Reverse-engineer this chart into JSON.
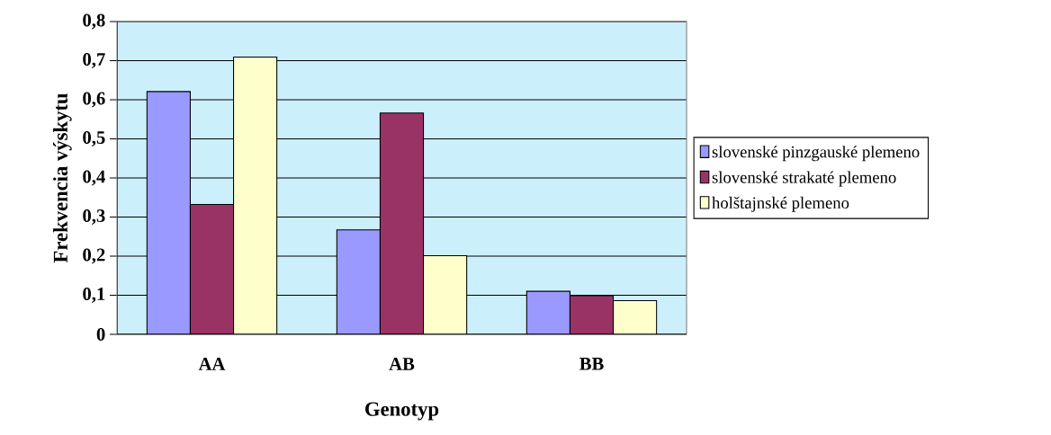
{
  "chart_data": {
    "type": "bar",
    "xlabel": "Genotyp",
    "ylabel": "Frekvencia výskytu",
    "categories": [
      "AA",
      "AB",
      "BB"
    ],
    "series": [
      {
        "name": "slovenské pinzgauské plemeno",
        "color": "#9999ff",
        "values": [
          0.621,
          0.267,
          0.11
        ]
      },
      {
        "name": "slovenské strakaté plemeno",
        "color": "#993366",
        "values": [
          0.332,
          0.566,
          0.099
        ]
      },
      {
        "name": "holštajnské plemeno",
        "color": "#ffffcc",
        "values": [
          0.709,
          0.201,
          0.086
        ]
      }
    ],
    "ylim": [
      0,
      0.8
    ],
    "yticks": [
      0,
      {
        "value": 0.1,
        "label": "0,1"
      },
      {
        "value": 0.2,
        "label": "0,2"
      },
      {
        "value": 0.3,
        "label": "0,3"
      },
      {
        "value": 0.4,
        "label": "0,4"
      },
      {
        "value": 0.5,
        "label": "0,5"
      },
      {
        "value": 0.6,
        "label": "0,6"
      },
      {
        "value": 0.7,
        "label": "0,7"
      },
      {
        "value": 0.8,
        "label": "0,8"
      }
    ],
    "grid": "y",
    "legend": "right"
  }
}
